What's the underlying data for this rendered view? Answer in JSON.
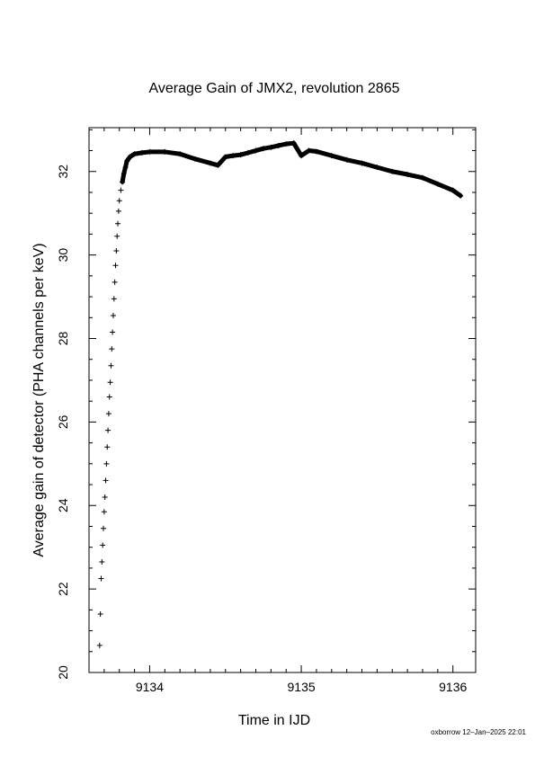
{
  "chart_data": {
    "type": "scatter",
    "title": "Average Gain of JMX2, revolution 2865",
    "xlabel": "Time in IJD",
    "ylabel": "Average gain of detector (PHA channels per keV)",
    "xlim": [
      9133.6,
      9136.15
    ],
    "ylim": [
      20,
      33.05
    ],
    "x_ticks": [
      9134,
      9135,
      9136
    ],
    "y_ticks": [
      20,
      22,
      24,
      26,
      28,
      30,
      32
    ],
    "marker": "+",
    "grid": false,
    "series": [
      {
        "x": [
          9133.67,
          9133.675,
          9133.68,
          9133.685,
          9133.69,
          9133.695,
          9133.7,
          9133.705,
          9133.71,
          9133.715,
          9133.72,
          9133.725,
          9133.73,
          9133.735,
          9133.74,
          9133.745,
          9133.75,
          9133.755,
          9133.76,
          9133.765,
          9133.77,
          9133.775,
          9133.78,
          9133.785,
          9133.79,
          9133.795,
          9133.8,
          9133.81,
          9133.82,
          9133.83,
          9133.84,
          9133.85,
          9133.87,
          9133.9,
          9133.95,
          9134.0,
          9134.1,
          9134.2,
          9134.3,
          9134.4,
          9134.45,
          9134.5,
          9134.55,
          9134.6,
          9134.65,
          9134.7,
          9134.75,
          9134.8,
          9134.85,
          9134.9,
          9134.95,
          9135.0,
          9135.05,
          9135.1,
          9135.2,
          9135.3,
          9135.4,
          9135.5,
          9135.6,
          9135.7,
          9135.8,
          9135.9,
          9136.0,
          9136.05
        ],
        "y": [
          20.65,
          21.4,
          22.25,
          22.65,
          23.05,
          23.45,
          23.85,
          24.2,
          24.6,
          25.0,
          25.4,
          25.8,
          26.2,
          26.6,
          26.95,
          27.35,
          27.75,
          28.15,
          28.55,
          28.95,
          29.35,
          29.75,
          30.1,
          30.45,
          30.75,
          31.05,
          31.3,
          31.55,
          31.75,
          31.95,
          32.1,
          32.25,
          32.35,
          32.42,
          32.45,
          32.47,
          32.47,
          32.42,
          32.3,
          32.2,
          32.15,
          32.35,
          32.38,
          32.4,
          32.45,
          32.5,
          32.55,
          32.58,
          32.62,
          32.66,
          32.68,
          32.38,
          32.5,
          32.48,
          32.38,
          32.28,
          32.2,
          32.1,
          32.0,
          31.93,
          31.85,
          31.7,
          31.55,
          31.42
        ]
      }
    ]
  },
  "footer": "oxborrow 12–Jan–2025 22:01"
}
